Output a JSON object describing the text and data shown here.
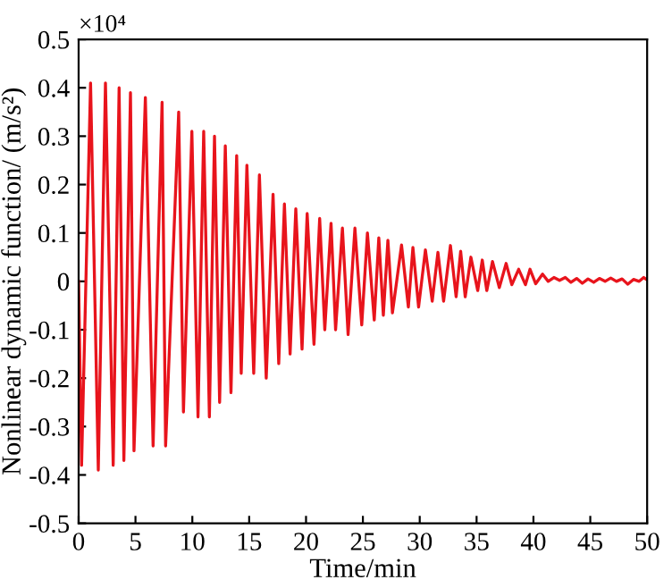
{
  "chart_data": {
    "type": "line",
    "xlabel": "Time/min",
    "ylabel": "Nonlinear dynamic function/ (m/s²)",
    "annotations": [
      "×10⁴"
    ],
    "xlim": [
      0,
      50
    ],
    "xticks": [
      0,
      5,
      10,
      15,
      20,
      25,
      30,
      35,
      40,
      45,
      50
    ],
    "ylim": [
      -0.5,
      0.5
    ],
    "yticks": [
      -0.5,
      -0.4,
      -0.3,
      -0.2,
      -0.1,
      0,
      0.1,
      0.2,
      0.3,
      0.4,
      0.5
    ],
    "grid": false,
    "marker": "none",
    "line_style": "solid",
    "series": [
      {
        "color": "#e8141c",
        "x": [
          0,
          0.26,
          1.05,
          1.73,
          2.36,
          3.04,
          3.56,
          3.98,
          4.56,
          4.87,
          5.87,
          6.55,
          7.34,
          7.65,
          8.8,
          9.22,
          9.96,
          10.5,
          11.0,
          11.5,
          11.95,
          12.4,
          12.9,
          13.4,
          13.9,
          14.3,
          14.8,
          15.4,
          15.9,
          16.5,
          17.1,
          17.6,
          18.1,
          18.6,
          19.1,
          19.65,
          20.1,
          20.7,
          21.2,
          21.65,
          22.2,
          22.6,
          23.2,
          23.7,
          24.3,
          24.9,
          25.4,
          26.0,
          26.4,
          26.8,
          27.2,
          27.6,
          28.4,
          29.0,
          29.4,
          29.9,
          30.5,
          31.1,
          31.6,
          32.1,
          32.7,
          33.2,
          33.6,
          34.0,
          34.5,
          35.1,
          35.5,
          35.9,
          36.4,
          37.0,
          37.6,
          38.1,
          38.7,
          39.3,
          39.7,
          40.2,
          40.8,
          41.3,
          41.8,
          42.3,
          42.8,
          43.3,
          43.8,
          44.3,
          44.8,
          45.3,
          45.8,
          46.3,
          46.8,
          47.3,
          47.8,
          48.3,
          48.8,
          49.3,
          49.7,
          50
        ],
        "values": [
          0,
          -0.38,
          0.41,
          -0.39,
          0.41,
          -0.38,
          0.4,
          -0.37,
          0.39,
          -0.35,
          0.38,
          -0.34,
          0.37,
          -0.34,
          0.35,
          -0.27,
          0.31,
          -0.28,
          0.31,
          -0.28,
          0.3,
          -0.25,
          0.28,
          -0.23,
          0.26,
          -0.19,
          0.24,
          -0.19,
          0.22,
          -0.2,
          0.18,
          -0.17,
          0.16,
          -0.15,
          0.15,
          -0.14,
          0.14,
          -0.13,
          0.13,
          -0.1,
          0.12,
          -0.1,
          0.11,
          -0.11,
          0.11,
          -0.09,
          0.1,
          -0.08,
          0.09,
          -0.07,
          0.085,
          -0.065,
          0.075,
          -0.053,
          0.07,
          -0.053,
          0.065,
          -0.041,
          0.06,
          -0.041,
          0.074,
          -0.032,
          0.062,
          -0.032,
          0.05,
          -0.019,
          0.044,
          -0.019,
          0.041,
          -0.013,
          0.037,
          -0.007,
          0.025,
          -0.007,
          0.025,
          -0.005,
          0.015,
          0.0,
          0.008,
          0.002,
          0.008,
          -0.002,
          0.006,
          -0.004,
          0.005,
          -0.002,
          0.006,
          0.0,
          0.007,
          0.0,
          0.005,
          -0.006,
          0.004,
          0.0,
          0.008,
          0.003
        ]
      }
    ]
  }
}
